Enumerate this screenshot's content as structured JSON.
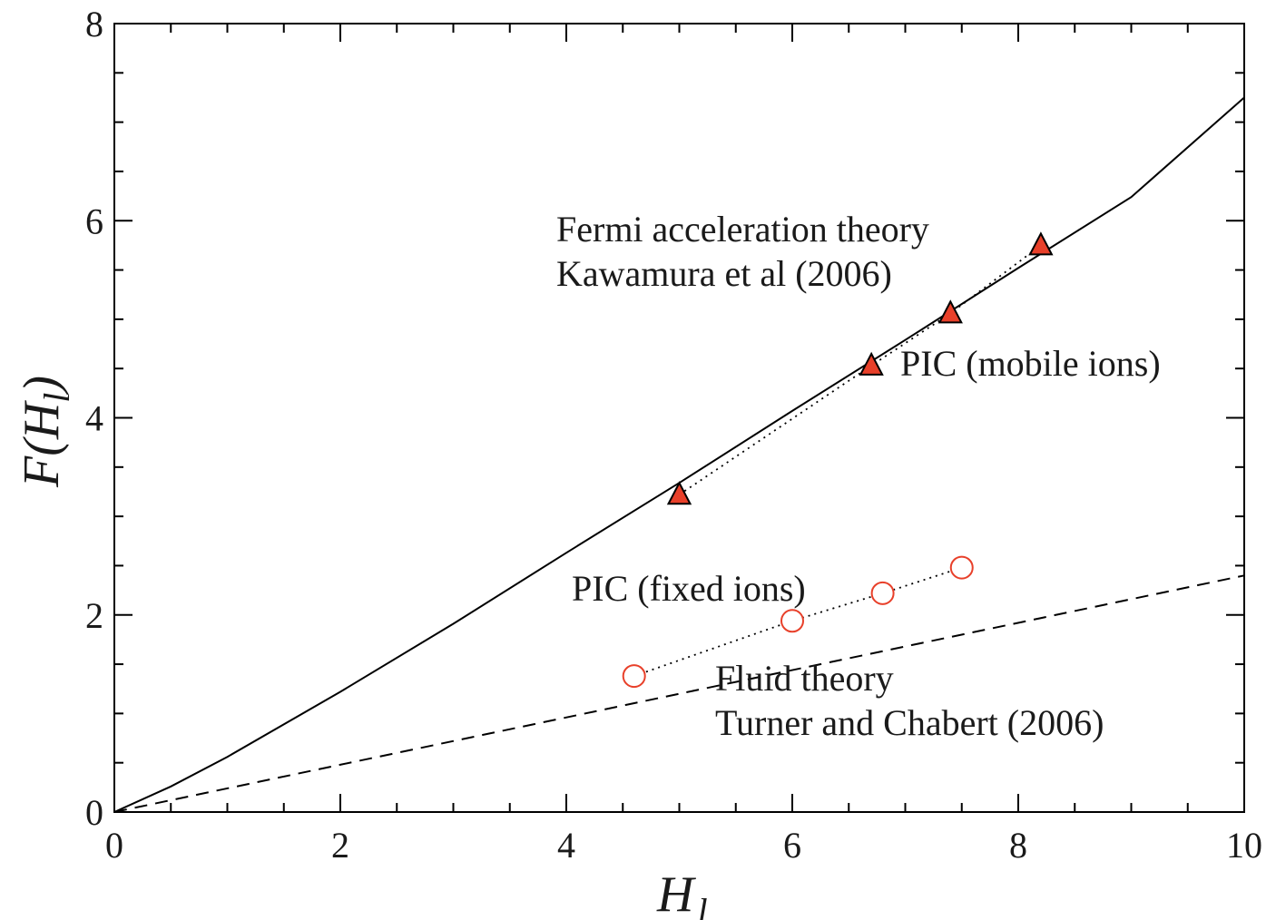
{
  "chart_data": {
    "type": "line",
    "xlabel": "H",
    "xlabel_sub": "l",
    "ylabel": "F(H",
    "ylabel_sub": "l",
    "ylabel_close": ")",
    "xlim": [
      0,
      10
    ],
    "ylim": [
      0,
      8
    ],
    "x_ticks": [
      "0",
      "2",
      "4",
      "6",
      "8",
      "10"
    ],
    "y_ticks": [
      "0",
      "2",
      "4",
      "6",
      "8"
    ],
    "grid": false,
    "series": [
      {
        "name": "Fermi acceleration theory Kawamura et al (2006)",
        "style": "solid",
        "color": "#000000",
        "x": [
          0,
          0.5,
          1,
          2,
          3,
          4,
          5,
          6,
          7,
          8,
          9,
          10
        ],
        "y": [
          0,
          0.26,
          0.56,
          1.22,
          1.91,
          2.63,
          3.34,
          4.07,
          4.79,
          5.52,
          6.24,
          7.25
        ]
      },
      {
        "name": "Fluid theory Turner and Chabert (2006)",
        "style": "dashed",
        "color": "#000000",
        "x": [
          0,
          10
        ],
        "y": [
          0,
          2.4
        ]
      },
      {
        "name": "PIC (mobile ions)",
        "style": "dotted",
        "marker": "triangle",
        "color": "#e8402a",
        "x": [
          5.0,
          6.7,
          7.4,
          8.2
        ],
        "y": [
          3.22,
          4.53,
          5.06,
          5.75
        ]
      },
      {
        "name": "PIC (fixed ions)",
        "style": "dotted",
        "marker": "circle",
        "color": "#e8402a",
        "x": [
          4.6,
          6.0,
          6.8,
          7.5
        ],
        "y": [
          1.38,
          1.94,
          2.22,
          2.48
        ]
      }
    ],
    "annotations": [
      {
        "id": "fermi-1",
        "text": "Fermi acceleration theory"
      },
      {
        "id": "fermi-2",
        "text": "Kawamura et al (2006)"
      },
      {
        "id": "mobile",
        "text": "PIC (mobile ions)"
      },
      {
        "id": "fixed",
        "text": "PIC (fixed ions)"
      },
      {
        "id": "fluid-1",
        "text": "Fluid theory"
      },
      {
        "id": "fluid-2",
        "text": "Turner and Chabert (2006)"
      }
    ]
  }
}
